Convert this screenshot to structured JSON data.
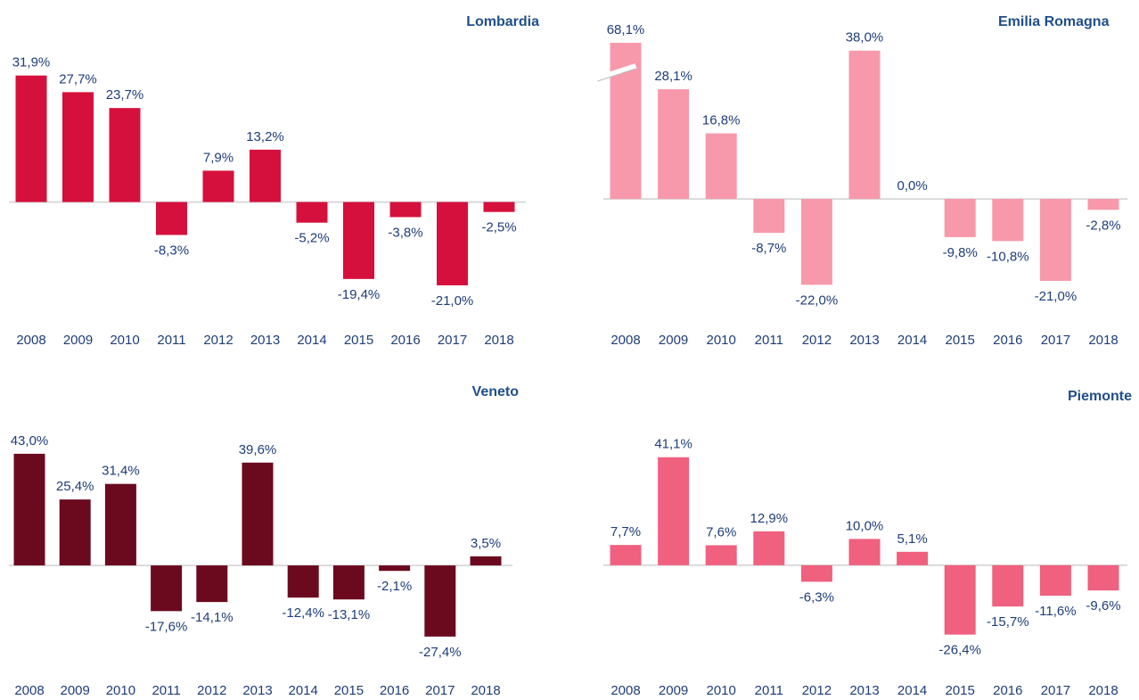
{
  "chart_data": [
    {
      "type": "bar",
      "title": "Lombardia",
      "color": "#d6103c",
      "ylim": [
        -30,
        37
      ],
      "categories": [
        "2008",
        "2009",
        "2010",
        "2011",
        "2012",
        "2013",
        "2014",
        "2015",
        "2016",
        "2017",
        "2018"
      ],
      "values": [
        31.9,
        27.7,
        23.7,
        -8.3,
        7.9,
        13.2,
        -5.2,
        -19.4,
        -3.8,
        -21.0,
        -2.5
      ],
      "value_labels": [
        "31,9%",
        "27,7%",
        "23,7%",
        "-8,3%",
        "7,9%",
        "13,2%",
        "-5,2%",
        "-19,4%",
        "-3,8%",
        "-21,0%",
        "-2,5%"
      ]
    },
    {
      "type": "bar",
      "title": "Emilia Romagna",
      "color": "#f799ab",
      "ylim": [
        -25,
        40
      ],
      "categories": [
        "2008",
        "2009",
        "2010",
        "2011",
        "2012",
        "2013",
        "2014",
        "2015",
        "2016",
        "2017",
        "2018"
      ],
      "values": [
        68.1,
        28.1,
        16.8,
        -8.7,
        -22.0,
        38.0,
        0.0,
        -9.8,
        -10.8,
        -21.0,
        -2.8
      ],
      "value_labels": [
        "68,1%",
        "28,1%",
        "16,8%",
        "-8,7%",
        "-22,0%",
        "38,0%",
        "0,0%",
        "-9,8%",
        "-10,8%",
        "-21,0%",
        "-2,8%"
      ]
    },
    {
      "type": "bar",
      "title": "Veneto",
      "color": "#6b0a1f",
      "ylim": [
        -35,
        50
      ],
      "categories": [
        "2008",
        "2009",
        "2010",
        "2011",
        "2012",
        "2013",
        "2014",
        "2015",
        "2016",
        "2017",
        "2018"
      ],
      "values": [
        43.0,
        25.4,
        31.4,
        -17.6,
        -14.1,
        39.6,
        -12.4,
        -13.1,
        -2.1,
        -27.4,
        3.5
      ],
      "value_labels": [
        "43,0%",
        "25,4%",
        "31,4%",
        "-17,6%",
        "-14,1%",
        "39,6%",
        "-12,4%",
        "-13,1%",
        "-2,1%",
        "-27,4%",
        "3,5%"
      ]
    },
    {
      "type": "bar",
      "title": "Piemonte",
      "color": "#f0607f",
      "ylim": [
        -35,
        50
      ],
      "categories": [
        "2008",
        "2009",
        "2010",
        "2011",
        "2012",
        "2013",
        "2014",
        "2015",
        "2016",
        "2017",
        "2018"
      ],
      "values": [
        7.7,
        41.1,
        7.6,
        12.9,
        -6.3,
        10.0,
        5.1,
        -26.4,
        -15.7,
        -11.6,
        -9.6
      ],
      "value_labels": [
        "7,7%",
        "41,1%",
        "7,6%",
        "12,9%",
        "-6,3%",
        "10,0%",
        "5,1%",
        "-26,4%",
        "-15,7%",
        "-11,6%",
        "-9,6%"
      ]
    }
  ]
}
